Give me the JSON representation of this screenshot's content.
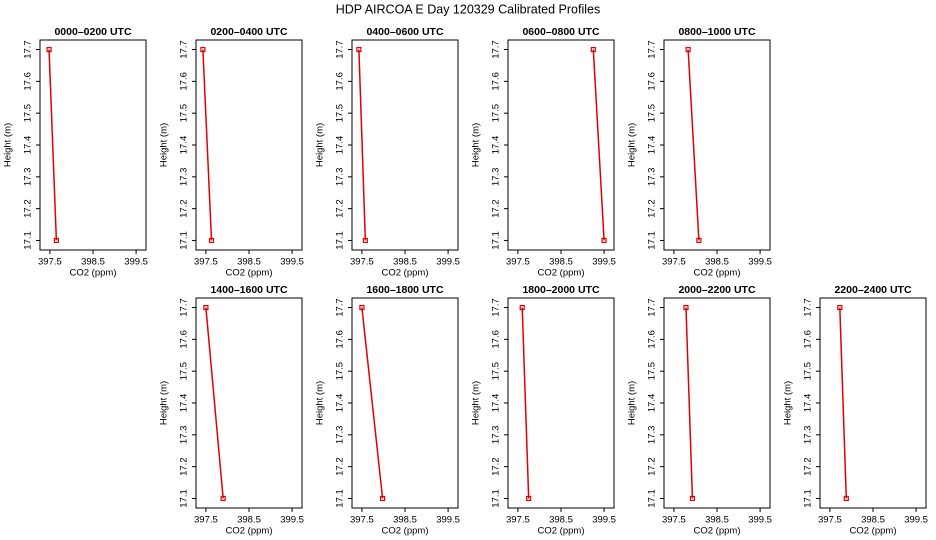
{
  "title": "HDP AIRCOA E  Day 120329  Calibrated Profiles",
  "chart_data": [
    {
      "type": "line",
      "title": "0000–0200 UTC",
      "xlabel": "CO2 (ppm)",
      "ylabel": "Height (m)",
      "x": [
        397.48,
        397.65
      ],
      "values": [
        17.7,
        17.1
      ],
      "color": "#e00000",
      "xlim": [
        397.27,
        399.73
      ],
      "ylim": [
        17.07,
        17.73
      ],
      "xticks": [
        397.5,
        398.5,
        399.5
      ],
      "yticks": [
        17.1,
        17.2,
        17.3,
        17.4,
        17.5,
        17.6,
        17.7
      ]
    },
    {
      "type": "line",
      "title": "0200–0400 UTC",
      "xlabel": "CO2 (ppm)",
      "ylabel": "Height (m)",
      "x": [
        397.43,
        397.63
      ],
      "values": [
        17.7,
        17.1
      ],
      "color": "#e00000",
      "xlim": [
        397.27,
        399.73
      ],
      "ylim": [
        17.07,
        17.73
      ],
      "xticks": [
        397.5,
        398.5,
        399.5
      ],
      "yticks": [
        17.1,
        17.2,
        17.3,
        17.4,
        17.5,
        17.6,
        17.7
      ]
    },
    {
      "type": "line",
      "title": "0400–0600 UTC",
      "xlabel": "CO2 (ppm)",
      "ylabel": "Height (m)",
      "x": [
        397.43,
        397.58
      ],
      "values": [
        17.7,
        17.1
      ],
      "color": "#e00000",
      "xlim": [
        397.27,
        399.73
      ],
      "ylim": [
        17.07,
        17.73
      ],
      "xticks": [
        397.5,
        398.5,
        399.5
      ],
      "yticks": [
        17.1,
        17.2,
        17.3,
        17.4,
        17.5,
        17.6,
        17.7
      ]
    },
    {
      "type": "line",
      "title": "0600–0800 UTC",
      "xlabel": "CO2 (ppm)",
      "ylabel": "Height (m)",
      "x": [
        399.25,
        399.5
      ],
      "values": [
        17.7,
        17.1
      ],
      "color": "#e00000",
      "xlim": [
        397.27,
        399.73
      ],
      "ylim": [
        17.07,
        17.73
      ],
      "xticks": [
        397.5,
        398.5,
        399.5
      ],
      "yticks": [
        17.1,
        17.2,
        17.3,
        17.4,
        17.5,
        17.6,
        17.7
      ]
    },
    {
      "type": "line",
      "title": "0800–1000 UTC",
      "xlabel": "CO2 (ppm)",
      "ylabel": "Height (m)",
      "x": [
        397.83,
        398.08
      ],
      "values": [
        17.7,
        17.1
      ],
      "color": "#e00000",
      "xlim": [
        397.27,
        399.73
      ],
      "ylim": [
        17.07,
        17.73
      ],
      "xticks": [
        397.5,
        398.5,
        399.5
      ],
      "yticks": [
        17.1,
        17.2,
        17.3,
        17.4,
        17.5,
        17.6,
        17.7
      ]
    },
    {
      "type": "line",
      "title": "1400–1600 UTC",
      "xlabel": "CO2 (ppm)",
      "ylabel": "Height (m)",
      "x": [
        397.5,
        397.9
      ],
      "values": [
        17.7,
        17.1
      ],
      "color": "#e00000",
      "xlim": [
        397.27,
        399.73
      ],
      "ylim": [
        17.07,
        17.73
      ],
      "xticks": [
        397.5,
        398.5,
        399.5
      ],
      "yticks": [
        17.1,
        17.2,
        17.3,
        17.4,
        17.5,
        17.6,
        17.7
      ]
    },
    {
      "type": "line",
      "title": "1600–1800 UTC",
      "xlabel": "CO2 (ppm)",
      "ylabel": "Height (m)",
      "x": [
        397.5,
        397.98
      ],
      "values": [
        17.7,
        17.1
      ],
      "color": "#e00000",
      "xlim": [
        397.27,
        399.73
      ],
      "ylim": [
        17.07,
        17.73
      ],
      "xticks": [
        397.5,
        398.5,
        399.5
      ],
      "yticks": [
        17.1,
        17.2,
        17.3,
        17.4,
        17.5,
        17.6,
        17.7
      ]
    },
    {
      "type": "line",
      "title": "1800–2000 UTC",
      "xlabel": "CO2 (ppm)",
      "ylabel": "Height (m)",
      "x": [
        397.6,
        397.75
      ],
      "values": [
        17.7,
        17.1
      ],
      "color": "#e00000",
      "xlim": [
        397.27,
        399.73
      ],
      "ylim": [
        17.07,
        17.73
      ],
      "xticks": [
        397.5,
        398.5,
        399.5
      ],
      "yticks": [
        17.1,
        17.2,
        17.3,
        17.4,
        17.5,
        17.6,
        17.7
      ]
    },
    {
      "type": "line",
      "title": "2000–2200 UTC",
      "xlabel": "CO2 (ppm)",
      "ylabel": "Height (m)",
      "x": [
        397.78,
        397.93
      ],
      "values": [
        17.7,
        17.1
      ],
      "color": "#e00000",
      "xlim": [
        397.27,
        399.73
      ],
      "ylim": [
        17.07,
        17.73
      ],
      "xticks": [
        397.5,
        398.5,
        399.5
      ],
      "yticks": [
        17.1,
        17.2,
        17.3,
        17.4,
        17.5,
        17.6,
        17.7
      ]
    },
    {
      "type": "line",
      "title": "2200–2400 UTC",
      "xlabel": "CO2 (ppm)",
      "ylabel": "Height (m)",
      "x": [
        397.73,
        397.88
      ],
      "values": [
        17.7,
        17.1
      ],
      "color": "#e00000",
      "xlim": [
        397.27,
        399.73
      ],
      "ylim": [
        17.07,
        17.73
      ],
      "xticks": [
        397.5,
        398.5,
        399.5
      ],
      "yticks": [
        17.1,
        17.2,
        17.3,
        17.4,
        17.5,
        17.6,
        17.7
      ]
    }
  ]
}
